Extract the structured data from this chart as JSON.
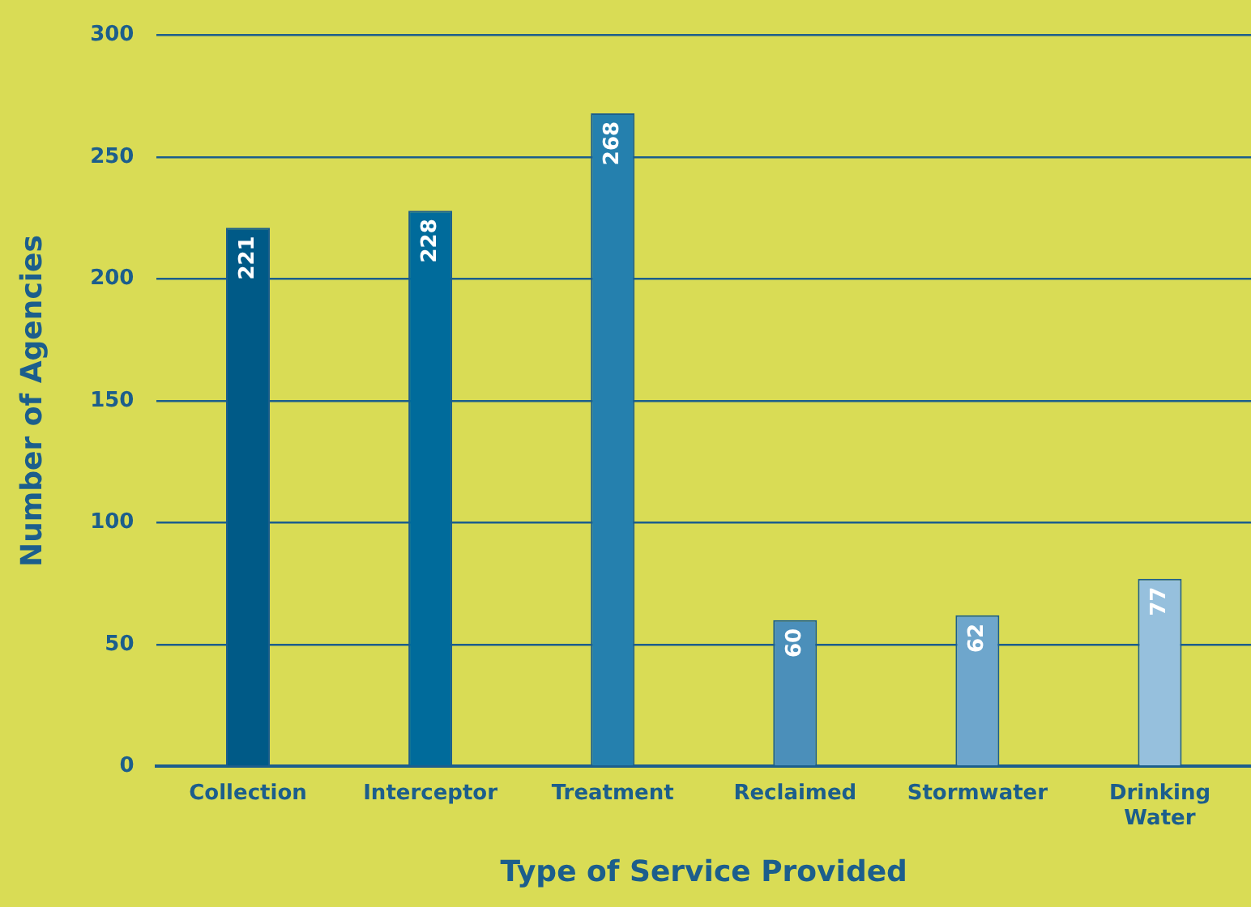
{
  "chart_data": {
    "type": "bar",
    "xlabel": "Type of Service Provided",
    "ylabel": "Number of Agencies",
    "categories": [
      "Collection",
      "Interceptor",
      "Treatment",
      "Reclaimed",
      "Stormwater",
      "Drinking Water"
    ],
    "values": [
      221,
      228,
      268,
      60,
      62,
      77
    ],
    "colors": [
      "#005a87",
      "#006b9b",
      "#2580ae",
      "#4b8fba",
      "#6ea6cc",
      "#96c0dd"
    ],
    "ylim": [
      0,
      300
    ],
    "yticks": [
      0,
      50,
      100,
      150,
      200,
      250,
      300
    ],
    "grid": "y",
    "data_labels": true
  }
}
